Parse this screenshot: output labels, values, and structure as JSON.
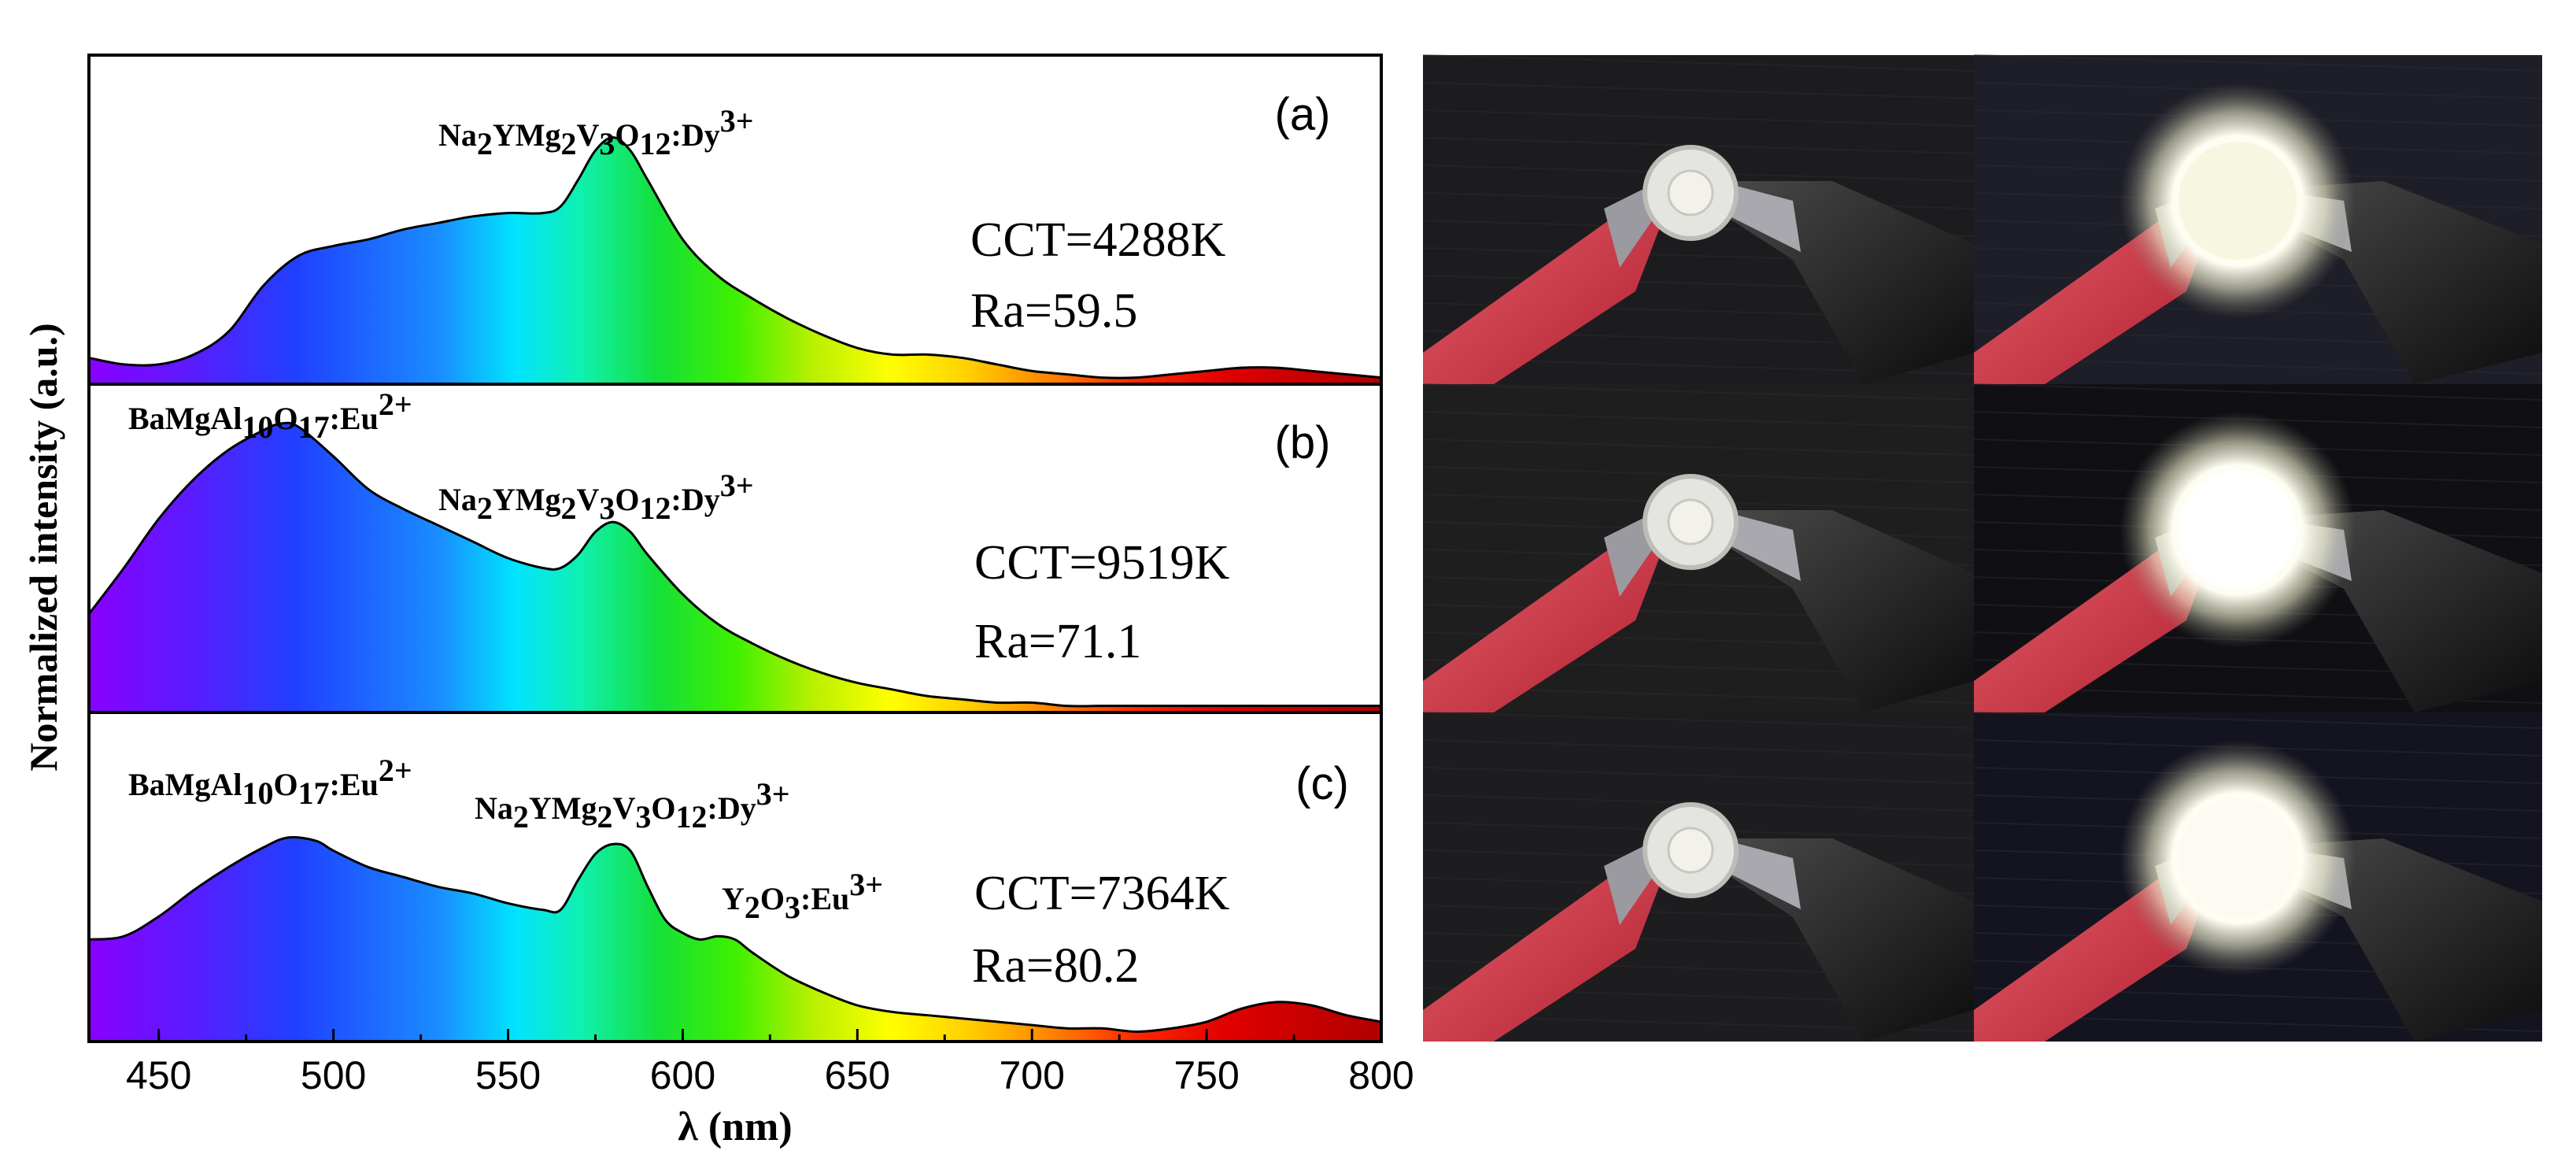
{
  "chart_data": {
    "type": "area",
    "xlabel": "λ (nm)",
    "ylabel": "Normalized intensity (a.u.)",
    "xlim": [
      430,
      800
    ],
    "xticks": [
      450,
      500,
      550,
      600,
      650,
      700,
      750,
      800
    ],
    "grid": false,
    "fill": "visible-spectrum rainbow gradient under each curve",
    "panels": [
      {
        "label": "(a)",
        "cct": "CCT=4288K",
        "ra": "Ra=59.5",
        "peak_labels": [
          {
            "base": "Na",
            "parts": [
              [
                "Na",
                ""
              ],
              [
                "2",
                "sub"
              ],
              [
                "YMg",
                ""
              ],
              [
                "2",
                "sub"
              ],
              [
                "V",
                ""
              ],
              [
                "3",
                "sub"
              ],
              [
                "O",
                ""
              ],
              [
                "12",
                "sub"
              ],
              [
                ":Dy",
                ""
              ],
              [
                "3+",
                "sup"
              ]
            ],
            "x": 582
          }
        ],
        "series": {
          "x": [
            430,
            440,
            450,
            460,
            470,
            480,
            490,
            500,
            510,
            520,
            530,
            540,
            550,
            560,
            565,
            570,
            575,
            580,
            585,
            590,
            600,
            610,
            620,
            630,
            640,
            650,
            660,
            670,
            680,
            690,
            700,
            710,
            720,
            730,
            740,
            750,
            760,
            770,
            780,
            790,
            800
          ],
          "y": [
            0.08,
            0.06,
            0.06,
            0.09,
            0.16,
            0.3,
            0.39,
            0.42,
            0.44,
            0.47,
            0.49,
            0.51,
            0.52,
            0.52,
            0.54,
            0.62,
            0.71,
            0.75,
            0.71,
            0.62,
            0.44,
            0.33,
            0.26,
            0.2,
            0.15,
            0.11,
            0.09,
            0.09,
            0.08,
            0.06,
            0.04,
            0.03,
            0.02,
            0.02,
            0.03,
            0.04,
            0.05,
            0.05,
            0.04,
            0.03,
            0.02
          ]
        }
      },
      {
        "label": "(b)",
        "cct": "CCT=9519K",
        "ra": "Ra=71.1",
        "peak_labels": [
          {
            "parts": [
              [
                "BaMgAl",
                ""
              ],
              [
                "10",
                "sub"
              ],
              [
                "O",
                ""
              ],
              [
                "17",
                "sub"
              ],
              [
                ":Eu",
                ""
              ],
              [
                "2+",
                "sup"
              ]
            ],
            "x": 485
          },
          {
            "parts": [
              [
                "Na",
                ""
              ],
              [
                "2",
                "sub"
              ],
              [
                "YMg",
                ""
              ],
              [
                "2",
                "sub"
              ],
              [
                "V",
                ""
              ],
              [
                "3",
                "sub"
              ],
              [
                "O",
                ""
              ],
              [
                "12",
                "sub"
              ],
              [
                ":Dy",
                ""
              ],
              [
                "3+",
                "sup"
              ]
            ],
            "x": 582
          }
        ],
        "series": {
          "x": [
            430,
            440,
            450,
            460,
            470,
            480,
            485,
            490,
            500,
            510,
            520,
            530,
            540,
            550,
            560,
            565,
            570,
            575,
            580,
            585,
            590,
            600,
            610,
            620,
            630,
            640,
            650,
            660,
            670,
            680,
            690,
            700,
            710,
            720,
            730,
            740,
            750,
            760,
            770,
            780,
            790,
            800
          ],
          "y": [
            0.3,
            0.44,
            0.59,
            0.71,
            0.8,
            0.86,
            0.88,
            0.87,
            0.78,
            0.68,
            0.62,
            0.57,
            0.52,
            0.47,
            0.44,
            0.44,
            0.48,
            0.55,
            0.58,
            0.55,
            0.48,
            0.36,
            0.27,
            0.21,
            0.16,
            0.12,
            0.09,
            0.07,
            0.05,
            0.04,
            0.03,
            0.03,
            0.02,
            0.02,
            0.02,
            0.02,
            0.02,
            0.02,
            0.02,
            0.02,
            0.02,
            0.02
          ]
        }
      },
      {
        "label": "(c)",
        "cct": "CCT=7364K",
        "ra": "Ra=80.2",
        "peak_labels": [
          {
            "parts": [
              [
                "BaMgAl",
                ""
              ],
              [
                "10",
                "sub"
              ],
              [
                "O",
                ""
              ],
              [
                "17",
                "sub"
              ],
              [
                ":Eu",
                ""
              ],
              [
                "2+",
                "sup"
              ]
            ],
            "x": 487
          },
          {
            "parts": [
              [
                "Na",
                ""
              ],
              [
                "2",
                "sub"
              ],
              [
                "YMg",
                ""
              ],
              [
                "2",
                "sub"
              ],
              [
                "V",
                ""
              ],
              [
                "3",
                "sub"
              ],
              [
                "O",
                ""
              ],
              [
                "12",
                "sub"
              ],
              [
                ":Dy",
                ""
              ],
              [
                "3+",
                "sup"
              ]
            ],
            "x": 585
          },
          {
            "parts": [
              [
                "Y",
                ""
              ],
              [
                "2",
                "sub"
              ],
              [
                "O",
                ""
              ],
              [
                "3",
                "sub"
              ],
              [
                ":Eu",
                ""
              ],
              [
                "3+",
                "sup"
              ]
            ],
            "x": 615
          }
        ],
        "series": {
          "x": [
            430,
            440,
            450,
            460,
            470,
            480,
            487,
            495,
            500,
            510,
            520,
            530,
            540,
            550,
            560,
            565,
            570,
            575,
            580,
            585,
            590,
            595,
            600,
            605,
            610,
            615,
            620,
            630,
            640,
            650,
            660,
            670,
            680,
            690,
            700,
            710,
            720,
            730,
            740,
            750,
            760,
            770,
            780,
            790,
            800
          ],
          "y": [
            0.31,
            0.32,
            0.38,
            0.46,
            0.53,
            0.59,
            0.62,
            0.61,
            0.58,
            0.53,
            0.5,
            0.47,
            0.45,
            0.42,
            0.4,
            0.4,
            0.49,
            0.57,
            0.6,
            0.58,
            0.47,
            0.37,
            0.33,
            0.31,
            0.32,
            0.31,
            0.27,
            0.2,
            0.15,
            0.11,
            0.09,
            0.08,
            0.07,
            0.06,
            0.05,
            0.04,
            0.04,
            0.03,
            0.04,
            0.06,
            0.1,
            0.12,
            0.11,
            0.08,
            0.06
          ]
        }
      }
    ]
  },
  "photos": {
    "description_icons": [
      "led-off-photo",
      "led-on-photo"
    ],
    "rows": [
      {
        "off_background": "#1c1c1e",
        "on_background": "#1e1e28",
        "glow_color": "#f5f7e0"
      },
      {
        "off_background": "#1e1e1f",
        "on_background": "#101014",
        "glow_color": "#ffffff"
      },
      {
        "off_background": "#1d1d20",
        "on_background": "#141420",
        "glow_color": "#fbfbf3"
      }
    ]
  }
}
